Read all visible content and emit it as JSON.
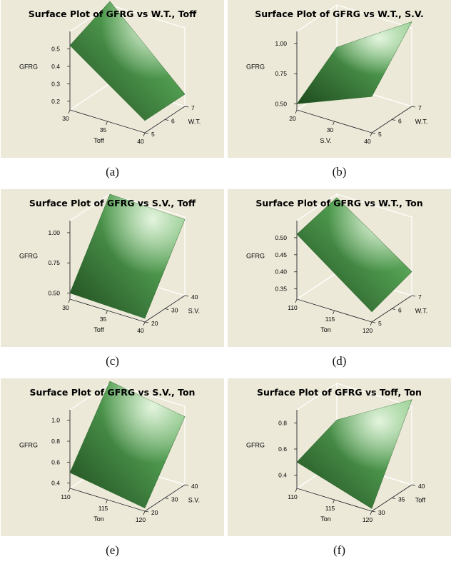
{
  "colors": {
    "panel_bg": "#ece9d8",
    "surface_dark": "#1e4a1e",
    "surface_mid": "#4f9a4f",
    "surface_light": "#eaf8e4"
  },
  "panels": [
    {
      "caption": "(a)"
    },
    {
      "caption": "(b)"
    },
    {
      "caption": "(c)"
    },
    {
      "caption": "(d)"
    },
    {
      "caption": "(e)"
    },
    {
      "caption": "(f)"
    }
  ],
  "chart_data": [
    {
      "type": "surface",
      "title": "Surface Plot of GFRG vs W.T., Toff",
      "xlabel": "Toff",
      "ylabel": "W.T.",
      "zlabel": "GFRG",
      "x_ticks": [
        "30",
        "35",
        "40"
      ],
      "y_ticks": [
        "5",
        "6",
        "7"
      ],
      "z_ticks": [
        "0.2",
        "0.3",
        "0.4",
        "0.5"
      ],
      "xlim": [
        30,
        40
      ],
      "ylim": [
        5,
        7
      ],
      "zlim": [
        0.15,
        0.6
      ],
      "corners": {
        "x_min_y_min": 0.52,
        "x_max_y_min": 0.22,
        "x_min_y_max": 0.62,
        "x_max_y_max": 0.22
      }
    },
    {
      "type": "surface",
      "title": "Surface Plot of GFRG vs W.T., S.V.",
      "xlabel": "S.V.",
      "ylabel": "W.T.",
      "zlabel": "GFRG",
      "x_ticks": [
        "20",
        "30",
        "40"
      ],
      "y_ticks": [
        "5",
        "6",
        "7"
      ],
      "z_ticks": [
        "0.50",
        "0.75",
        "1.00"
      ],
      "xlim": [
        20,
        40
      ],
      "ylim": [
        5,
        7
      ],
      "zlim": [
        0.45,
        1.1
      ],
      "corners": {
        "x_min_y_min": 0.5,
        "x_max_y_min": 0.75,
        "x_min_y_max": 0.75,
        "x_max_y_max": 1.15
      }
    },
    {
      "type": "surface",
      "title": "Surface Plot of GFRG vs S.V., Toff",
      "xlabel": "Toff",
      "ylabel": "S.V.",
      "zlabel": "GFRG",
      "x_ticks": [
        "30",
        "35",
        "40"
      ],
      "y_ticks": [
        "20",
        "30",
        "40"
      ],
      "z_ticks": [
        "0.50",
        "0.75",
        "1.00"
      ],
      "xlim": [
        30,
        40
      ],
      "ylim": [
        20,
        40
      ],
      "zlim": [
        0.45,
        1.1
      ],
      "corners": {
        "x_min_y_min": 0.5,
        "x_max_y_min": 0.48,
        "x_min_y_max": 1.1,
        "x_max_y_max": 1.08
      }
    },
    {
      "type": "surface",
      "title": "Surface Plot of GFRG vs W.T., Ton",
      "xlabel": "Ton",
      "ylabel": "W.T.",
      "zlabel": "GFRG",
      "x_ticks": [
        "110",
        "115",
        "120"
      ],
      "y_ticks": [
        "5",
        "6",
        "7"
      ],
      "z_ticks": [
        "0.35",
        "0.40",
        "0.45",
        "0.50"
      ],
      "xlim": [
        110,
        120
      ],
      "ylim": [
        5,
        7
      ],
      "zlim": [
        0.32,
        0.55
      ],
      "corners": {
        "x_min_y_min": 0.51,
        "x_max_y_min": 0.35,
        "x_min_y_max": 0.54,
        "x_max_y_max": 0.39
      }
    },
    {
      "type": "surface",
      "title": "Surface Plot of GFRG vs S.V., Ton",
      "xlabel": "Ton",
      "ylabel": "S.V.",
      "zlabel": "GFRG",
      "x_ticks": [
        "110",
        "115",
        "120"
      ],
      "y_ticks": [
        "20",
        "30",
        "40"
      ],
      "z_ticks": [
        "0.4",
        "0.6",
        "0.8",
        "1.0"
      ],
      "xlim": [
        110,
        120
      ],
      "ylim": [
        20,
        40
      ],
      "zlim": [
        0.35,
        1.1
      ],
      "corners": {
        "x_min_y_min": 0.5,
        "x_max_y_min": 0.38,
        "x_min_y_max": 1.12,
        "x_max_y_max": 1.0
      }
    },
    {
      "type": "surface",
      "title": "Surface Plot of GFRG vs Toff, Ton",
      "xlabel": "Ton",
      "ylabel": "Toff",
      "zlabel": "GFRG",
      "x_ticks": [
        "110",
        "115",
        "120"
      ],
      "y_ticks": [
        "30",
        "35",
        "40"
      ],
      "z_ticks": [
        "0.4",
        "0.6",
        "0.8"
      ],
      "xlim": [
        110,
        120
      ],
      "ylim": [
        30,
        40
      ],
      "zlim": [
        0.3,
        0.9
      ],
      "corners": {
        "x_min_y_min": 0.5,
        "x_max_y_min": 0.32,
        "x_min_y_max": 0.62,
        "x_max_y_max": 0.95
      }
    }
  ]
}
